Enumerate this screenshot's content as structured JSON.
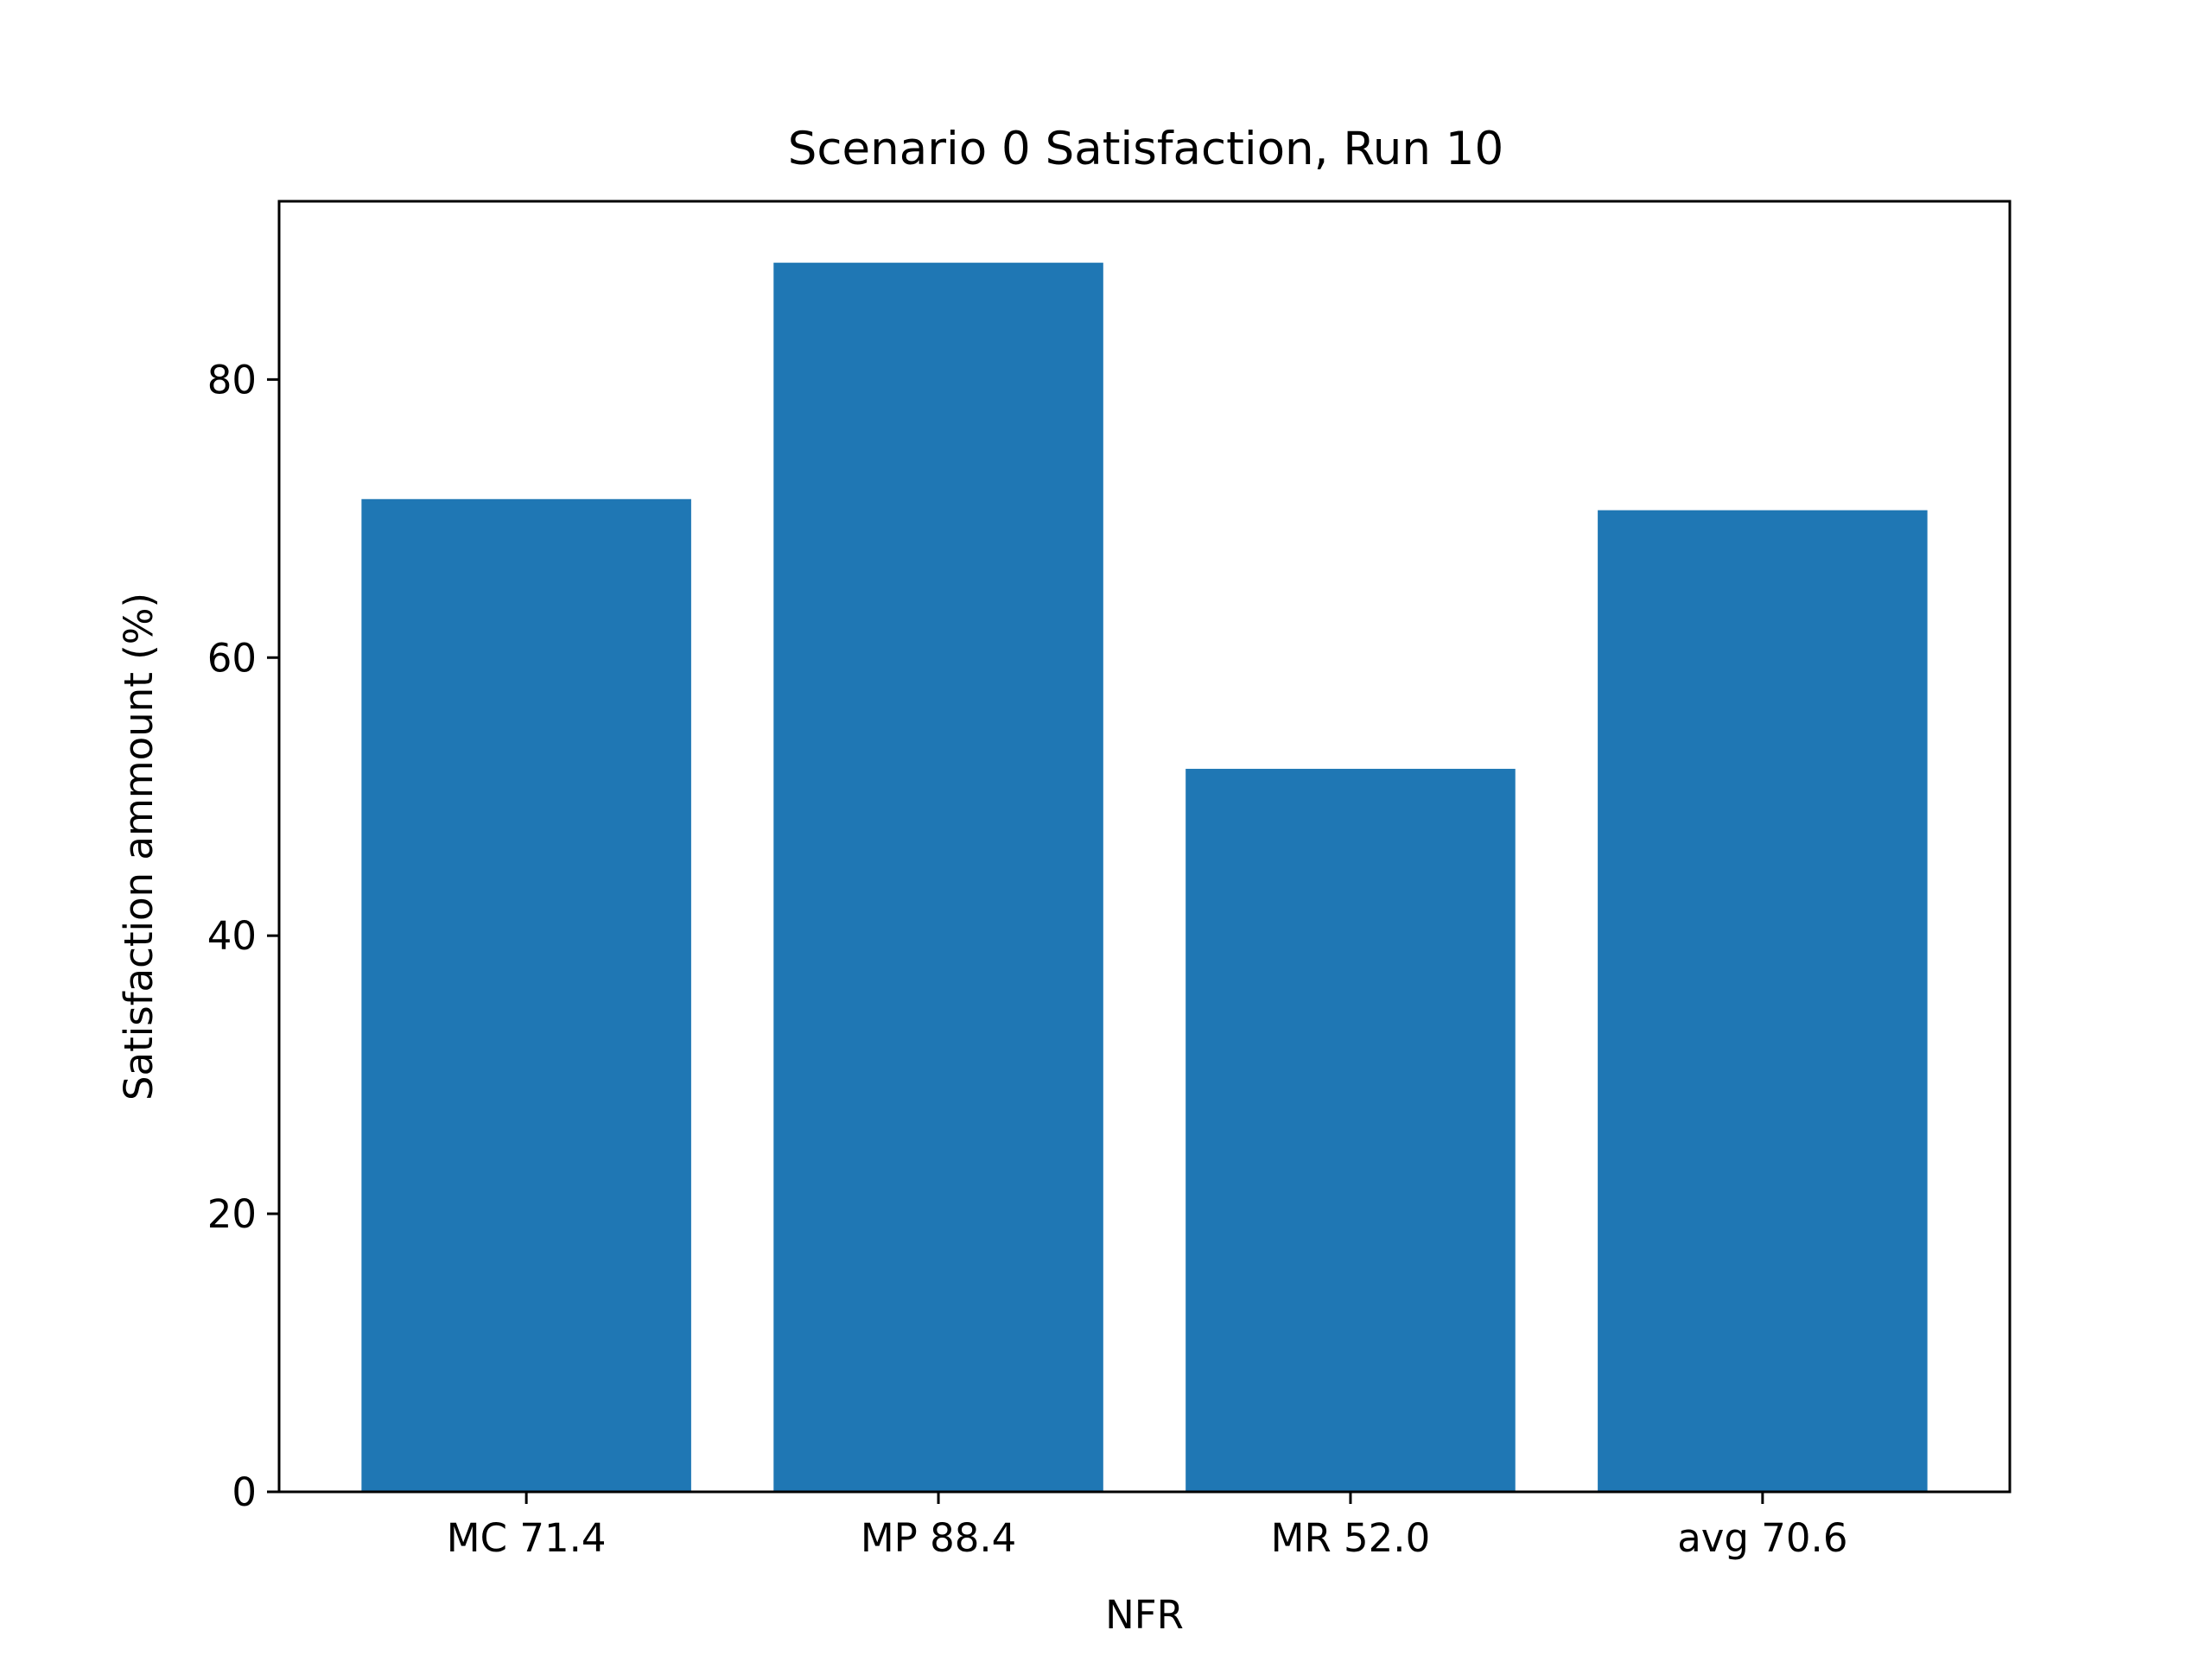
{
  "chart_data": {
    "type": "bar",
    "title": "Scenario 0 Satisfaction, Run 10",
    "xlabel": "NFR",
    "ylabel": "Satisfaction ammount (%)",
    "categories": [
      "MC 71.4",
      "MP 88.4",
      "MR 52.0",
      "avg 70.6"
    ],
    "values": [
      71.4,
      88.4,
      52.0,
      70.6
    ],
    "ylim": [
      0,
      92.82
    ],
    "yticks": [
      0,
      20,
      40,
      60,
      80
    ],
    "grid": false,
    "legend": "none",
    "bar_color": "#1f77b4"
  }
}
